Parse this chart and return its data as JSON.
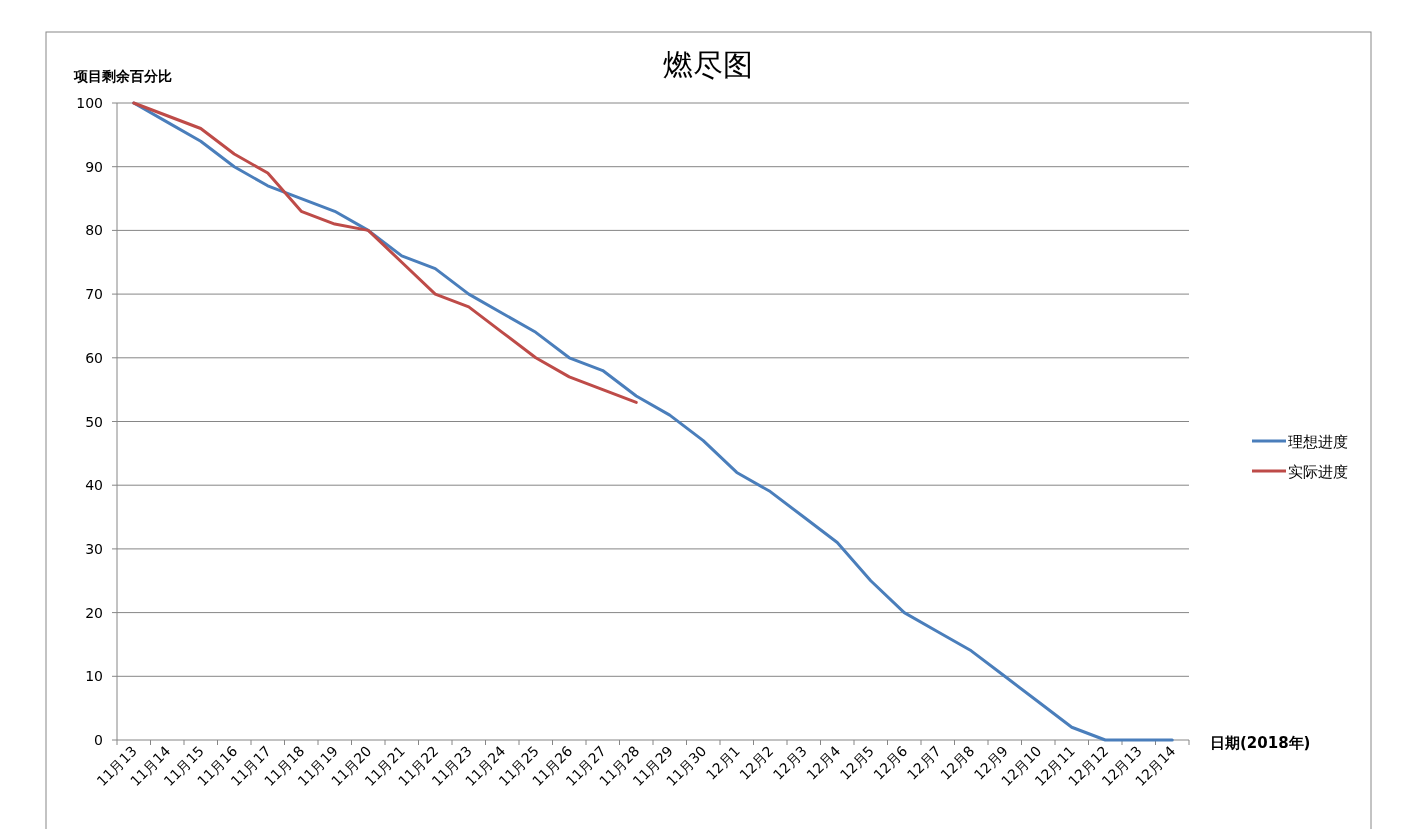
{
  "chart_data": {
    "type": "line",
    "title": "燃尽图",
    "ylabel": "项目剩余百分比",
    "xlabel": "日期(2018年)",
    "categories": [
      "11月13",
      "11月14",
      "11月15",
      "11月16",
      "11月17",
      "11月18",
      "11月19",
      "11月20",
      "11月21",
      "11月22",
      "11月23",
      "11月24",
      "11月25",
      "11月26",
      "11月27",
      "11月28",
      "11月29",
      "11月30",
      "12月1",
      "12月2",
      "12月3",
      "12月4",
      "12月5",
      "12月6",
      "12月7",
      "12月8",
      "12月9",
      "12月10",
      "12月11",
      "12月12",
      "12月13",
      "12月14"
    ],
    "series": [
      {
        "name": "理想进度",
        "color": "#4a7ebb",
        "values": [
          100,
          97,
          94,
          90,
          87,
          85,
          83,
          80,
          76,
          74,
          70,
          67,
          64,
          60,
          58,
          54,
          51,
          47,
          42,
          39,
          35,
          31,
          25,
          20,
          17,
          14,
          10,
          6,
          2,
          0,
          0,
          0
        ]
      },
      {
        "name": "实际进度",
        "color": "#be4b48",
        "values": [
          100,
          98,
          96,
          92,
          89,
          83,
          81,
          80,
          75,
          70,
          68,
          64,
          60,
          57,
          55,
          53,
          null,
          null,
          null,
          null,
          null,
          null,
          null,
          null,
          null,
          null,
          null,
          null,
          null,
          null,
          null,
          null
        ]
      }
    ],
    "ylim": [
      0,
      100
    ],
    "yticks": [
      0,
      10,
      20,
      30,
      40,
      50,
      60,
      70,
      80,
      90,
      100
    ],
    "grid": "y",
    "legend": "right",
    "marker": "none",
    "line_style": "solid"
  }
}
